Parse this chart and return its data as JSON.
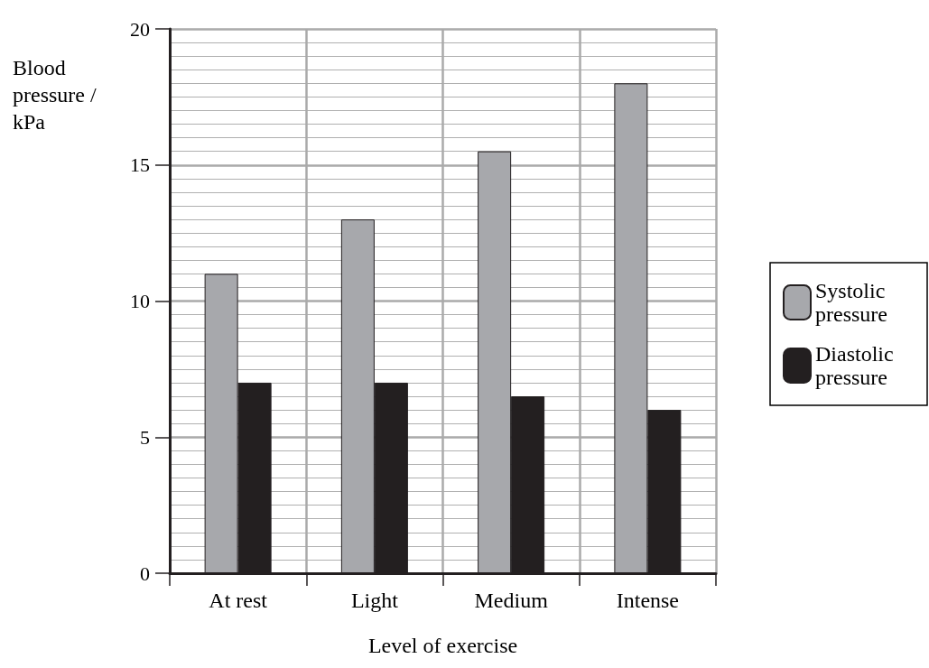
{
  "chart_data": {
    "type": "bar",
    "xlabel": "Level of exercise",
    "ylabel": "Blood pressure / kPa",
    "categories": [
      "At rest",
      "Light",
      "Medium",
      "Intense"
    ],
    "series": [
      {
        "name": "Systolic pressure",
        "color": "#a7a8ac",
        "values": [
          11,
          13,
          15.5,
          18
        ]
      },
      {
        "name": "Diastolic pressure",
        "color": "#231f20",
        "values": [
          7,
          7,
          6.5,
          6
        ]
      }
    ],
    "ylim": [
      0,
      20
    ],
    "yticks": [
      0,
      5,
      10,
      15,
      20
    ],
    "grid": true,
    "legend": "right"
  }
}
